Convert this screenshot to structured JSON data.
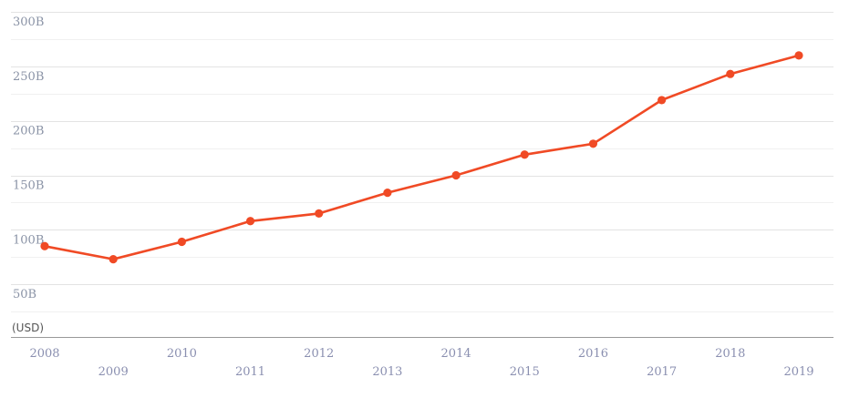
{
  "chart_data": {
    "type": "line",
    "title": "",
    "xlabel": "",
    "ylabel": "",
    "unit_label": "(USD)",
    "x": [
      "2008",
      "2009",
      "2010",
      "2011",
      "2012",
      "2013",
      "2014",
      "2015",
      "2016",
      "2017",
      "2018",
      "2019"
    ],
    "series": [
      {
        "color": "#f04a25",
        "values": [
          85,
          73,
          89,
          108,
          115,
          134,
          150,
          169,
          179,
          219,
          243,
          260
        ]
      }
    ],
    "y_ticks": [
      {
        "value": 50,
        "label": "50B"
      },
      {
        "value": 100,
        "label": "100B"
      },
      {
        "value": 150,
        "label": "150B"
      },
      {
        "value": 200,
        "label": "200B"
      },
      {
        "value": 250,
        "label": "250B"
      },
      {
        "value": 300,
        "label": "300B"
      }
    ],
    "ylim": [
      0,
      300
    ],
    "grid": true,
    "legend": "none"
  }
}
